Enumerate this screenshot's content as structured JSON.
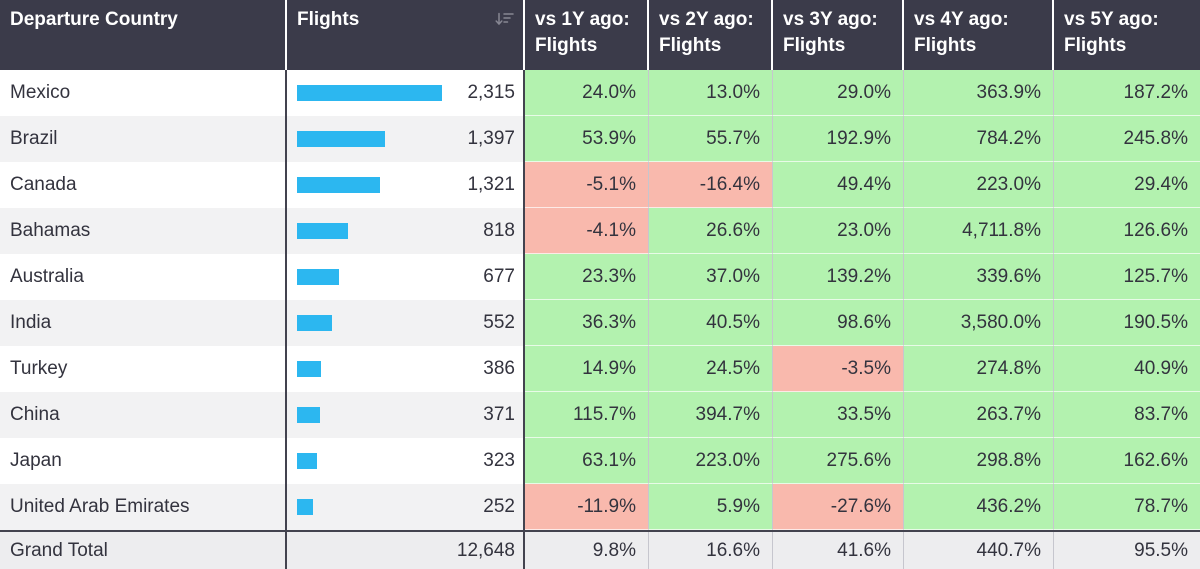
{
  "table": {
    "columns": [
      {
        "label": "Departure Country"
      },
      {
        "label": "Flights",
        "sorted": "descending"
      },
      {
        "label": "vs 1Y ago: Flights"
      },
      {
        "label": "vs 2Y ago: Flights"
      },
      {
        "label": "vs 3Y ago: Flights"
      },
      {
        "label": "vs 4Y ago: Flights"
      },
      {
        "label": "vs 5Y ago: Flights"
      }
    ],
    "rows": [
      {
        "country": "Mexico",
        "flights": "2,315",
        "flights_value": 2315,
        "pct": [
          "24.0%",
          "13.0%",
          "29.0%",
          "363.9%",
          "187.2%"
        ]
      },
      {
        "country": "Brazil",
        "flights": "1,397",
        "flights_value": 1397,
        "pct": [
          "53.9%",
          "55.7%",
          "192.9%",
          "784.2%",
          "245.8%"
        ]
      },
      {
        "country": "Canada",
        "flights": "1,321",
        "flights_value": 1321,
        "pct": [
          "-5.1%",
          "-16.4%",
          "49.4%",
          "223.0%",
          "29.4%"
        ]
      },
      {
        "country": "Bahamas",
        "flights": "818",
        "flights_value": 818,
        "pct": [
          "-4.1%",
          "26.6%",
          "23.0%",
          "4,711.8%",
          "126.6%"
        ]
      },
      {
        "country": "Australia",
        "flights": "677",
        "flights_value": 677,
        "pct": [
          "23.3%",
          "37.0%",
          "139.2%",
          "339.6%",
          "125.7%"
        ]
      },
      {
        "country": "India",
        "flights": "552",
        "flights_value": 552,
        "pct": [
          "36.3%",
          "40.5%",
          "98.6%",
          "3,580.0%",
          "190.5%"
        ]
      },
      {
        "country": "Turkey",
        "flights": "386",
        "flights_value": 386,
        "pct": [
          "14.9%",
          "24.5%",
          "-3.5%",
          "274.8%",
          "40.9%"
        ]
      },
      {
        "country": "China",
        "flights": "371",
        "flights_value": 371,
        "pct": [
          "115.7%",
          "394.7%",
          "33.5%",
          "263.7%",
          "83.7%"
        ]
      },
      {
        "country": "Japan",
        "flights": "323",
        "flights_value": 323,
        "pct": [
          "63.1%",
          "223.0%",
          "275.6%",
          "298.8%",
          "162.6%"
        ]
      },
      {
        "country": "United Arab Emirates",
        "flights": "252",
        "flights_value": 252,
        "pct": [
          "-11.9%",
          "5.9%",
          "-27.6%",
          "436.2%",
          "78.7%"
        ]
      }
    ],
    "grand_total": {
      "label": "Grand Total",
      "flights": "12,648",
      "flights_value": 12648,
      "pct": [
        "9.8%",
        "16.6%",
        "41.6%",
        "440.7%",
        "95.5%"
      ]
    }
  },
  "colors": {
    "header_bg": "#3b3b4a",
    "header_text": "#ffffff",
    "body_text": "#33333e",
    "positive_bg": "#b3f2af",
    "negative_bg": "#f9b9ad",
    "bar": "#2cb7f0",
    "row_alt_bg": "#f2f2f3",
    "total_bg": "#ededef",
    "divider_dark": "#43434f",
    "divider_light": "#c6c6ce"
  },
  "chart_data": {
    "type": "table",
    "columns": [
      "Departure Country",
      "Flights",
      "vs 1Y ago: Flights",
      "vs 2Y ago: Flights",
      "vs 3Y ago: Flights",
      "vs 4Y ago: Flights",
      "vs 5Y ago: Flights"
    ],
    "rows": [
      [
        "Mexico",
        2315,
        24.0,
        13.0,
        29.0,
        363.9,
        187.2
      ],
      [
        "Brazil",
        1397,
        53.9,
        55.7,
        192.9,
        784.2,
        245.8
      ],
      [
        "Canada",
        1321,
        -5.1,
        -16.4,
        49.4,
        223.0,
        29.4
      ],
      [
        "Bahamas",
        818,
        -4.1,
        26.6,
        23.0,
        4711.8,
        126.6
      ],
      [
        "Australia",
        677,
        23.3,
        37.0,
        139.2,
        339.6,
        125.7
      ],
      [
        "India",
        552,
        36.3,
        40.5,
        98.6,
        3580.0,
        190.5
      ],
      [
        "Turkey",
        386,
        14.9,
        24.5,
        -3.5,
        274.8,
        40.9
      ],
      [
        "China",
        371,
        115.7,
        394.7,
        33.5,
        263.7,
        83.7
      ],
      [
        "Japan",
        323,
        63.1,
        223.0,
        275.6,
        298.8,
        162.6
      ],
      [
        "United Arab Emirates",
        252,
        -11.9,
        5.9,
        -27.6,
        436.2,
        78.7
      ],
      [
        "Grand Total",
        12648,
        9.8,
        16.6,
        41.6,
        440.7,
        95.5
      ]
    ],
    "notes": {
      "bar_column": "Flights",
      "bar_scale_max": 2315,
      "sorted_by": "Flights descending",
      "conditional_format": "percent cells green when positive, red when negative; grand total row uncolored",
      "percent_unit": "%"
    }
  }
}
